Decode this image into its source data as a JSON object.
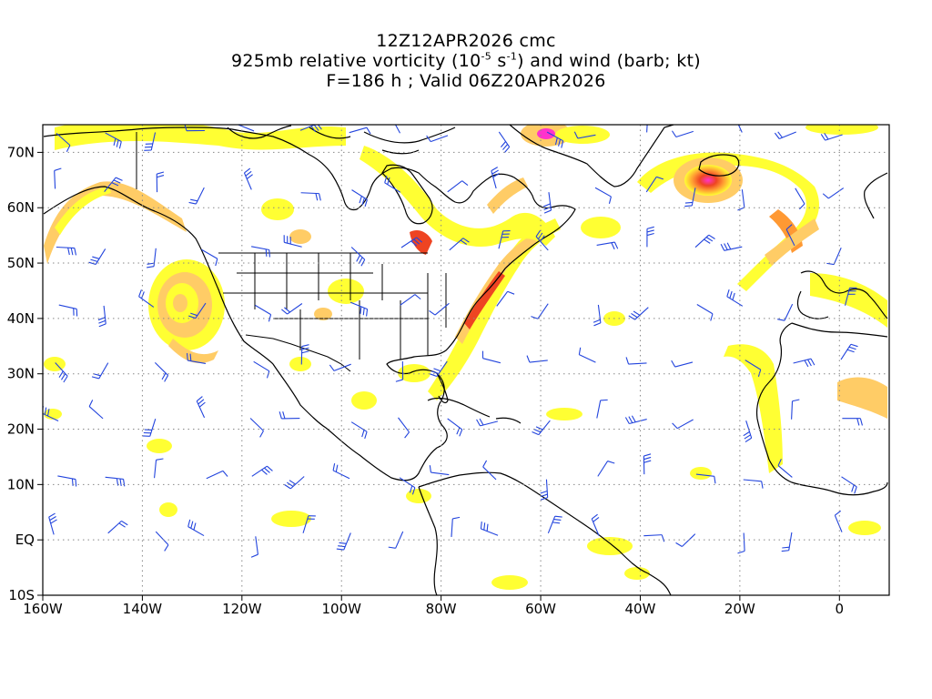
{
  "title": {
    "line1": "12Z12APR2026 cmc",
    "line2_main": "925mb relative vorticity (10",
    "line2_exp1": "-5",
    "line2_mid": " s",
    "line2_exp2": "-1",
    "line2_tail": ") and wind (barb; kt)",
    "line3": "F=186 h ; Valid 06Z20APR2026"
  },
  "axes": {
    "lon_labels": [
      {
        "lon": -160,
        "text": "160W"
      },
      {
        "lon": -140,
        "text": "140W"
      },
      {
        "lon": -120,
        "text": "120W"
      },
      {
        "lon": -100,
        "text": "100W"
      },
      {
        "lon": -80,
        "text": "80W"
      },
      {
        "lon": -60,
        "text": "60W"
      },
      {
        "lon": -40,
        "text": "40W"
      },
      {
        "lon": -20,
        "text": "20W"
      },
      {
        "lon": 0,
        "text": "0"
      }
    ],
    "lat_labels": [
      {
        "lat": 70,
        "text": "70N"
      },
      {
        "lat": 60,
        "text": "60N"
      },
      {
        "lat": 50,
        "text": "50N"
      },
      {
        "lat": 40,
        "text": "40N"
      },
      {
        "lat": 30,
        "text": "30N"
      },
      {
        "lat": 20,
        "text": "20N"
      },
      {
        "lat": 10,
        "text": "10N"
      },
      {
        "lat": 0,
        "text": "EQ"
      },
      {
        "lat": -10,
        "text": "10S"
      }
    ],
    "lon_range": [
      -160,
      10
    ],
    "lat_range": [
      -10,
      75
    ],
    "grid": "dotted"
  },
  "colors": {
    "shade_low": "#ffff33",
    "shade_mid": "#ffcc66",
    "shade_high": "#ff9933",
    "shade_strong": "#ee4422",
    "shade_max": "#ff33cc",
    "barb": "#2244dd",
    "coast": "#000000"
  }
}
